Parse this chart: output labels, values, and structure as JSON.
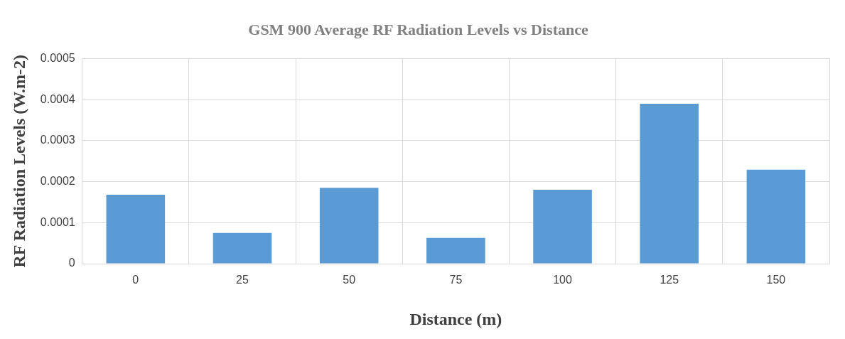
{
  "chart_data": {
    "type": "bar",
    "title": "GSM 900 Average RF Radiation Levels vs Distance",
    "xlabel": "Distance (m)",
    "ylabel": "RF Radiation Levels (W.m-2)",
    "categories": [
      "0",
      "25",
      "50",
      "75",
      "100",
      "125",
      "150"
    ],
    "values": [
      0.000168,
      7.5e-05,
      0.000185,
      6.3e-05,
      0.00018,
      0.00039,
      0.000229
    ],
    "color": "#5b9bd5",
    "ylim": [
      0,
      0.0005
    ],
    "yticks": [
      0,
      0.0001,
      0.0002,
      0.0003,
      0.0004,
      0.0005
    ],
    "grid": true,
    "legend": false
  }
}
